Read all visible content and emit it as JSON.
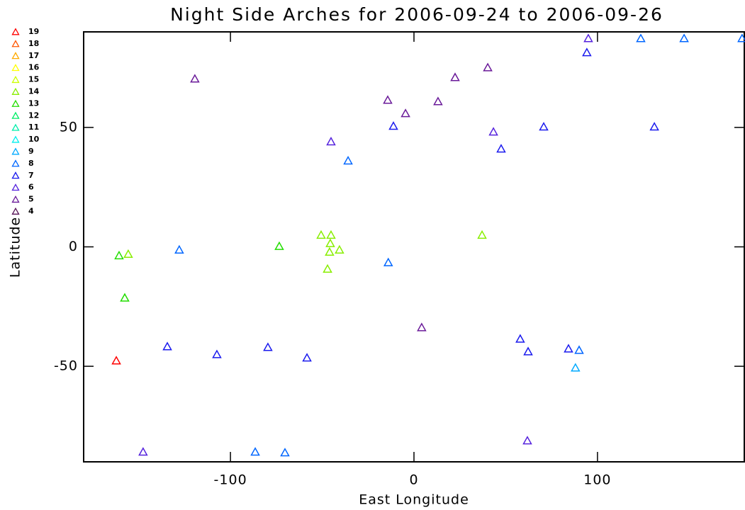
{
  "chart_data": {
    "type": "scatter",
    "title": "Night Side Arches for 2006-09-24 to 2006-09-26",
    "xlabel": "East Longitude",
    "ylabel": "Latitude",
    "xlim": [
      -180,
      180
    ],
    "ylim": [
      -90,
      90
    ],
    "xticks": [
      -100,
      0,
      100
    ],
    "yticks": [
      -50,
      0,
      50
    ],
    "marker": "triangle",
    "legend": "outside-upper-left",
    "series": [
      {
        "name": "19",
        "color": "#ff0000",
        "x": [
          -162.2
        ],
        "values": [
          -47.6
        ]
      },
      {
        "name": "18",
        "color": "#ff5500",
        "x": [],
        "values": []
      },
      {
        "name": "17",
        "color": "#ffaa00",
        "x": [],
        "values": []
      },
      {
        "name": "16",
        "color": "#ffff00",
        "x": [],
        "values": []
      },
      {
        "name": "15",
        "color": "#ccff00",
        "x": [],
        "values": []
      },
      {
        "name": "14",
        "color": "#88ee00",
        "x": [
          -155.7,
          -50.6,
          -45.2,
          -45.6,
          -46.0,
          -40.6,
          -47.1,
          37.1
        ],
        "values": [
          -3.0,
          5.0,
          5.0,
          1.5,
          -2.1,
          -1.2,
          -9.2,
          5.0
        ]
      },
      {
        "name": "13",
        "color": "#22dd00",
        "x": [
          -73.4,
          -157.6,
          -160.7
        ],
        "values": [
          0.3,
          -21.3,
          -3.6
        ]
      },
      {
        "name": "12",
        "color": "#00ee66",
        "x": [],
        "values": []
      },
      {
        "name": "11",
        "color": "#00eeaa",
        "x": [],
        "values": []
      },
      {
        "name": "10",
        "color": "#00eeee",
        "x": [],
        "values": []
      },
      {
        "name": "9",
        "color": "#00aaff",
        "x": [
          88.0
        ],
        "values": [
          -50.6
        ]
      },
      {
        "name": "8",
        "color": "#0066ff",
        "x": [
          -35.9,
          -127.9,
          -14.0,
          123.6,
          147.2,
          178.8,
          90.0,
          -86.5,
          -70.3
        ],
        "values": [
          36.1,
          -1.2,
          -6.5,
          87.3,
          87.3,
          87.3,
          -43.2,
          -85.8,
          -86.1
        ]
      },
      {
        "name": "7",
        "color": "#1a1aee",
        "x": [
          -11.2,
          47.5,
          70.7,
          131.0,
          94.2,
          -134.4,
          -107.4,
          -79.6,
          -58.3,
          57.9,
          62.2,
          84.2
        ],
        "values": [
          50.6,
          41.1,
          50.3,
          50.3,
          81.4,
          -41.7,
          -45.0,
          -42.0,
          -46.4,
          -38.5,
          -43.8,
          -42.6
        ]
      },
      {
        "name": "6",
        "color": "#5522dd",
        "x": [
          -45.2,
          43.3,
          61.8,
          -147.6,
          95.0
        ],
        "values": [
          44.1,
          48.2,
          -81.1,
          -85.8,
          87.3
        ]
      },
      {
        "name": "5",
        "color": "#6a1a99",
        "x": [
          -119.4,
          -14.3,
          -4.6,
          13.1,
          22.4,
          40.2,
          4.2
        ],
        "values": [
          70.4,
          61.5,
          55.9,
          60.9,
          71.0,
          75.1,
          -33.7
        ]
      },
      {
        "name": "4",
        "color": "#551155",
        "x": [],
        "values": []
      }
    ]
  }
}
